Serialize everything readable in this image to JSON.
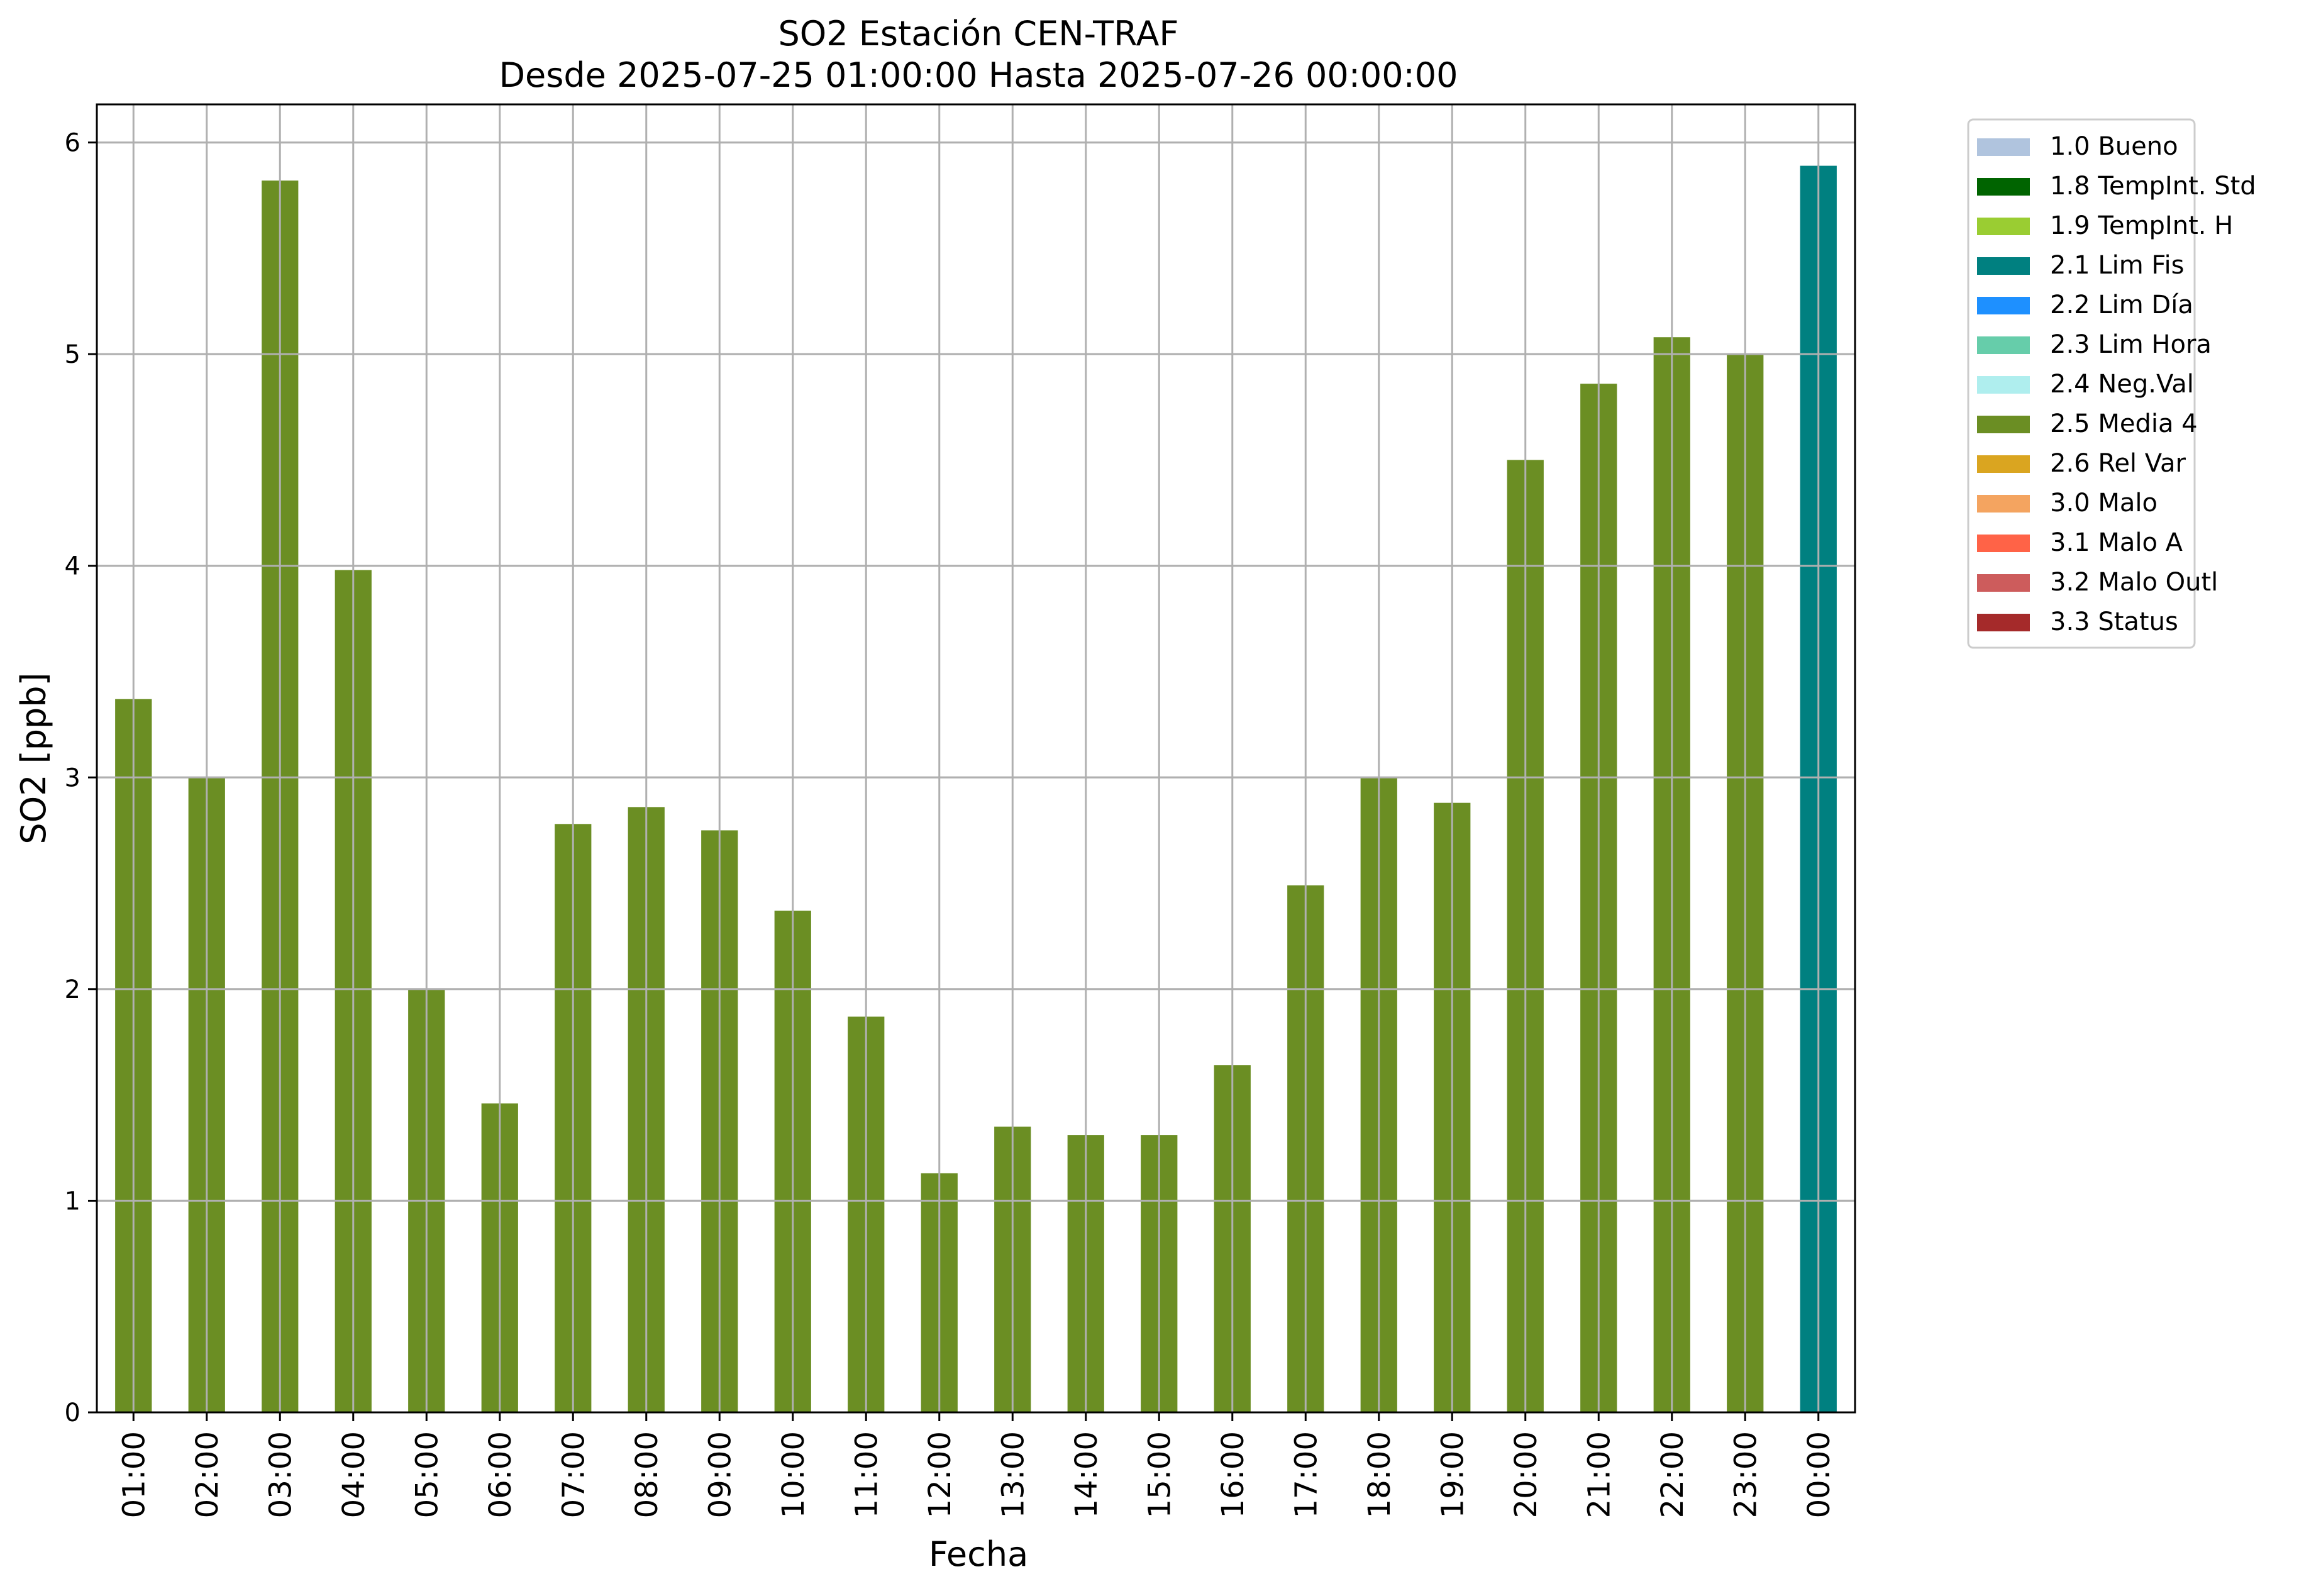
{
  "chart_data": {
    "type": "bar",
    "title": "SO2 Estación CEN-TRAF",
    "subtitle": "Desde 2025-07-25 01:00:00 Hasta 2025-07-26 00:00:00",
    "xlabel": "Fecha",
    "ylabel": "SO2 [ppb]",
    "ylim": [
      0,
      6.18
    ],
    "yticks": [
      0,
      1,
      2,
      3,
      4,
      5,
      6
    ],
    "grid": true,
    "legend_position": "outside-top-right",
    "categories": [
      "01:00",
      "02:00",
      "03:00",
      "04:00",
      "05:00",
      "06:00",
      "07:00",
      "08:00",
      "09:00",
      "10:00",
      "11:00",
      "12:00",
      "13:00",
      "14:00",
      "15:00",
      "16:00",
      "17:00",
      "18:00",
      "19:00",
      "20:00",
      "21:00",
      "22:00",
      "23:00",
      "00:00"
    ],
    "values": [
      3.37,
      3.0,
      5.82,
      3.98,
      2.0,
      1.46,
      2.78,
      2.86,
      2.75,
      2.37,
      1.87,
      1.13,
      1.35,
      1.31,
      1.31,
      1.64,
      2.49,
      3.0,
      2.88,
      4.5,
      4.86,
      5.08,
      5.0,
      5.89
    ],
    "bar_flags": [
      "2.5 Media 4",
      "2.5 Media 4",
      "2.5 Media 4",
      "2.5 Media 4",
      "2.5 Media 4",
      "2.5 Media 4",
      "2.5 Media 4",
      "2.5 Media 4",
      "2.5 Media 4",
      "2.5 Media 4",
      "2.5 Media 4",
      "2.5 Media 4",
      "2.5 Media 4",
      "2.5 Media 4",
      "2.5 Media 4",
      "2.5 Media 4",
      "2.5 Media 4",
      "2.5 Media 4",
      "2.5 Media 4",
      "2.5 Media 4",
      "2.5 Media 4",
      "2.5 Media 4",
      "2.5 Media 4",
      "2.1 Lim Fis"
    ],
    "legend": [
      {
        "label": "1.0 Bueno",
        "color": "#b0c4de"
      },
      {
        "label": "1.8 TempInt. Std",
        "color": "#006400"
      },
      {
        "label": "1.9 TempInt. H",
        "color": "#9acd32"
      },
      {
        "label": "2.1 Lim Fis",
        "color": "#008080"
      },
      {
        "label": "2.2 Lim Día",
        "color": "#1e90ff"
      },
      {
        "label": "2.3 Lim Hora",
        "color": "#66cdaa"
      },
      {
        "label": "2.4 Neg.Val",
        "color": "#afeeee"
      },
      {
        "label": "2.5 Media 4",
        "color": "#6b8e23"
      },
      {
        "label": "2.6 Rel Var",
        "color": "#daa520"
      },
      {
        "label": "3.0 Malo",
        "color": "#f4a460"
      },
      {
        "label": "3.1 Malo A",
        "color": "#ff6347"
      },
      {
        "label": "3.2 Malo Outl",
        "color": "#cd5c5c"
      },
      {
        "label": "3.3 Status",
        "color": "#a52a2a"
      }
    ]
  }
}
